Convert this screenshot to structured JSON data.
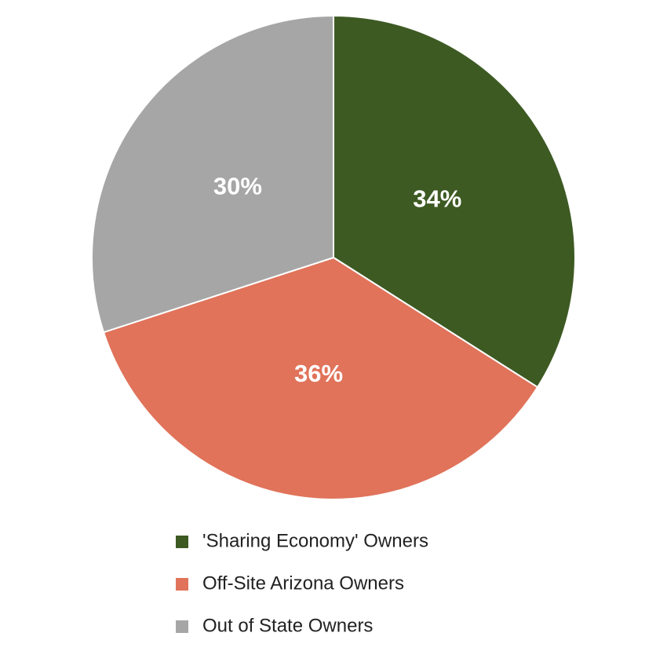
{
  "chart_data": {
    "type": "pie",
    "categories": [
      "'Sharing Economy' Owners",
      "Off-Site Arizona Owners",
      "Out of State Owners"
    ],
    "values": [
      34,
      36,
      30
    ],
    "value_labels": [
      "34%",
      "36%",
      "30%"
    ],
    "colors": [
      "#3d5a23",
      "#e0735a",
      "#a6a6a6"
    ]
  }
}
